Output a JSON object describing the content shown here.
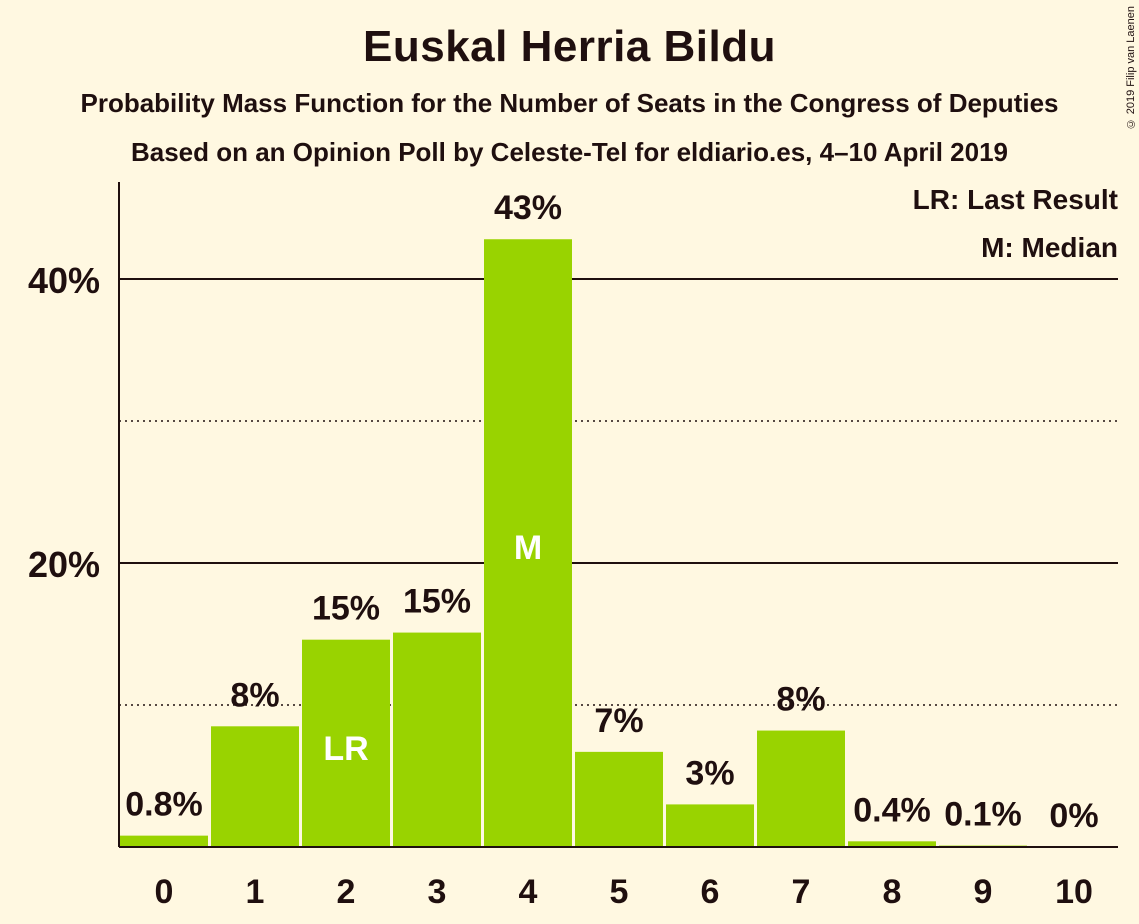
{
  "title": "Euskal Herria Bildu",
  "subtitle1": "Probability Mass Function for the Number of Seats in the Congress of Deputies",
  "subtitle2": "Based on an Opinion Poll by Celeste-Tel for eldiario.es, 4–10 April 2019",
  "copyright": "© 2019 Filip van Laenen",
  "colors": {
    "background": "#fff8e1",
    "bar": "#99d300",
    "text": "#1f0f0f"
  },
  "chart_data": {
    "type": "bar",
    "categories": [
      "0",
      "1",
      "2",
      "3",
      "4",
      "5",
      "6",
      "7",
      "8",
      "9",
      "10"
    ],
    "values": [
      0.8,
      8.5,
      14.6,
      15.1,
      42.8,
      6.7,
      3.0,
      8.2,
      0.4,
      0.1,
      0.0
    ],
    "value_labels": [
      "0.8%",
      "8%",
      "15%",
      "15%",
      "43%",
      "7%",
      "3%",
      "8%",
      "0.4%",
      "0.1%",
      "0%"
    ],
    "bar_markers": {
      "2": "LR",
      "4": "M"
    },
    "ylim": [
      0,
      47
    ],
    "y_ticks": [
      {
        "value": 20,
        "label": "20%"
      },
      {
        "value": 40,
        "label": "40%"
      }
    ],
    "minor_gridlines": [
      10,
      30
    ],
    "legend": [
      "LR: Last Result",
      "M: Median"
    ],
    "legend_position": "top-right",
    "grid": true
  }
}
